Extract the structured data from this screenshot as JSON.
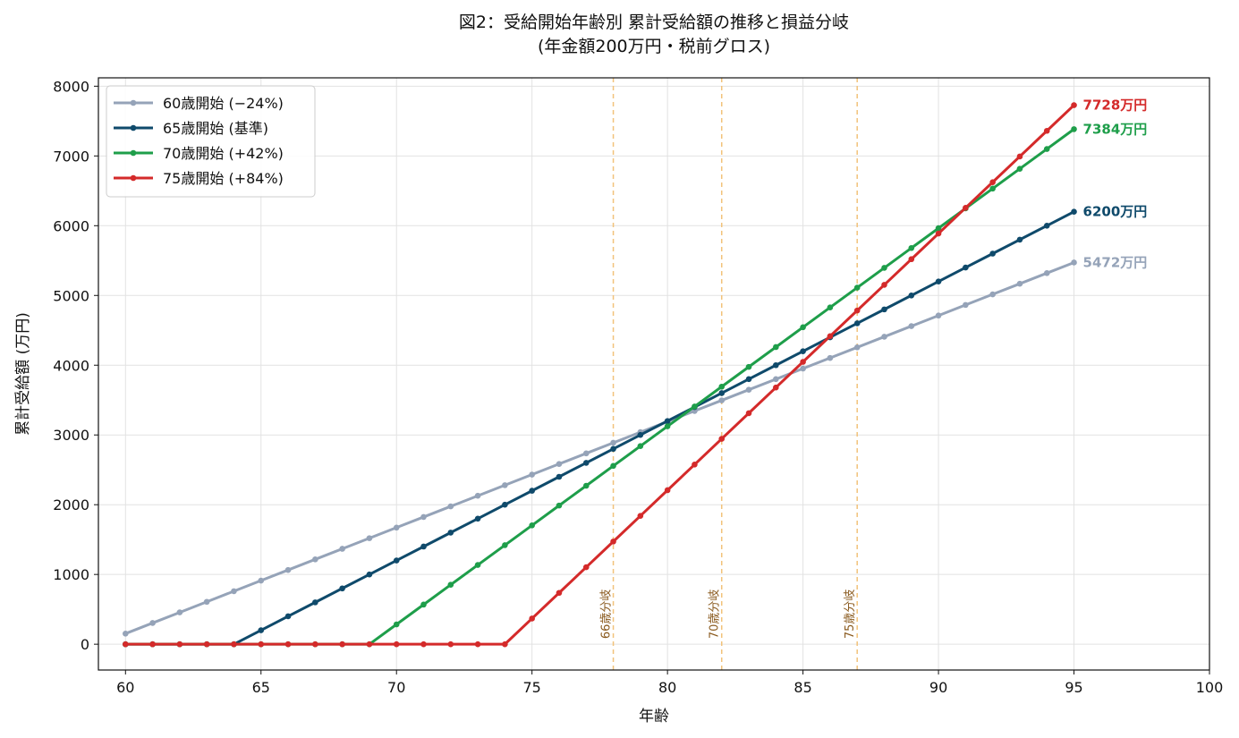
{
  "chart_data": {
    "type": "line",
    "title": "図2：受給開始年齢別 累計受給額の推移と損益分岐",
    "subtitle": "(年金額200万円・税前グロス)",
    "xlabel": "年齢",
    "ylabel": "累計受給額 (万円)",
    "xlim": [
      59,
      100
    ],
    "ylim": [
      -370,
      8120
    ],
    "xticks": [
      60,
      65,
      70,
      75,
      80,
      85,
      90,
      95,
      100
    ],
    "yticks": [
      0,
      1000,
      2000,
      3000,
      4000,
      5000,
      6000,
      7000,
      8000
    ],
    "grid": true,
    "legend_position": "top-left",
    "series": [
      {
        "name": "60歳開始 (−24%)",
        "color": "#95a3b8",
        "start_age": 60,
        "annual": 152,
        "end_age": 95,
        "end_label": "5472万円"
      },
      {
        "name": "65歳開始 (基準)",
        "color": "#0f4a6b",
        "start_age": 65,
        "annual": 200,
        "end_age": 95,
        "end_label": "6200万円"
      },
      {
        "name": "70歳開始 (+42%)",
        "color": "#1e9e4a",
        "start_age": 70,
        "annual": 284,
        "end_age": 95,
        "end_label": "7384万円"
      },
      {
        "name": "75歳開始 (+84%)",
        "color": "#d42a2a",
        "start_age": 75,
        "annual": 368,
        "end_age": 95,
        "end_label": "7728万円"
      }
    ],
    "breakeven_lines": [
      {
        "age": 78,
        "label": "66歳分岐"
      },
      {
        "age": 82,
        "label": "70歳分岐"
      },
      {
        "age": 87,
        "label": "75歳分岐"
      }
    ]
  }
}
